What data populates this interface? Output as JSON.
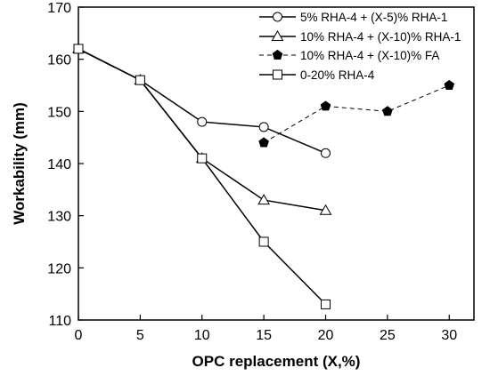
{
  "chart_data": {
    "type": "line",
    "xlabel": "OPC replacement (X,%)",
    "ylabel": "Workability (mm)",
    "xlim": [
      0,
      32
    ],
    "ylim": [
      110,
      170
    ],
    "xticks": [
      0,
      5,
      10,
      15,
      20,
      25,
      30
    ],
    "yticks": [
      110,
      120,
      130,
      140,
      150,
      160,
      170
    ],
    "legend_position": "top-right",
    "series": [
      {
        "name": "5% RHA-4   + (X-5)% RHA-1",
        "marker": "circle-open",
        "line": "solid",
        "points": [
          [
            0,
            162
          ],
          [
            5,
            156
          ],
          [
            10,
            148
          ],
          [
            15,
            147
          ],
          [
            20,
            142
          ]
        ]
      },
      {
        "name": "10% RHA-4   + (X-10)% RHA-1",
        "marker": "triangle-open",
        "line": "solid",
        "points": [
          [
            0,
            162
          ],
          [
            5,
            156
          ],
          [
            10,
            141
          ],
          [
            15,
            133
          ],
          [
            20,
            131
          ]
        ]
      },
      {
        "name": "10% RHA-4   + (X-10)% FA",
        "marker": "pentagon-filled",
        "line": "dashed",
        "points": [
          [
            15,
            144
          ],
          [
            20,
            151
          ],
          [
            25,
            150
          ],
          [
            30,
            155
          ]
        ]
      },
      {
        "name": "0-20% RHA-4",
        "marker": "square-open",
        "line": "solid",
        "points": [
          [
            0,
            162
          ],
          [
            5,
            156
          ],
          [
            10,
            141
          ],
          [
            15,
            125
          ],
          [
            20,
            113
          ]
        ]
      }
    ]
  }
}
